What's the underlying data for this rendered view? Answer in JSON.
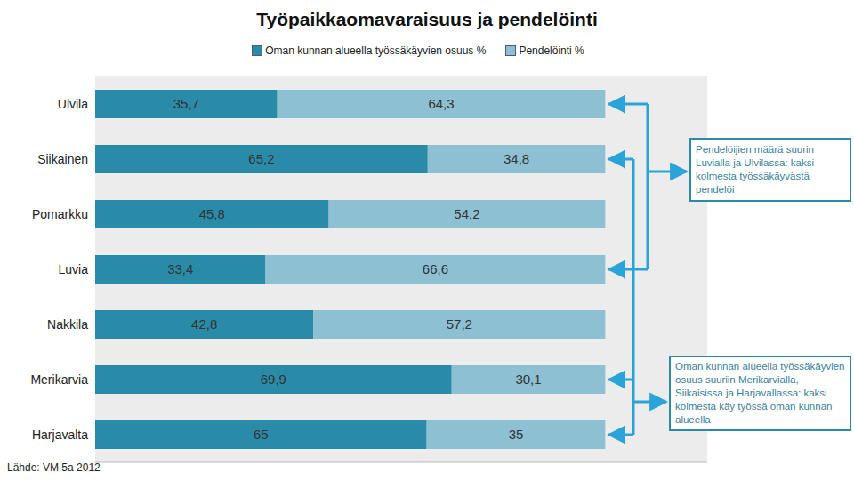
{
  "chart_data": {
    "type": "bar",
    "title": "Työpaikkaomavaraisuus ja pendelöinti",
    "orientation": "horizontal",
    "stacked": true,
    "data_labels": true,
    "legend": "top",
    "tick_labels": "y",
    "categories": [
      "Ulvila",
      "Siikainen",
      "Pomarkku",
      "Luvia",
      "Nakkila",
      "Merikarvia",
      "Harjavalta"
    ],
    "series": [
      {
        "name": "Oman kunnan alueella työssäkäyvien osuus %",
        "color": "#2a8ba8",
        "values": [
          35.7,
          65.2,
          45.8,
          33.4,
          42.8,
          69.9,
          65
        ],
        "value_labels": [
          "35,7",
          "65,2",
          "45,8",
          "33,4",
          "42,8",
          "69,9",
          "65"
        ]
      },
      {
        "name": "Pendelöinti %",
        "color": "#8cc0d2",
        "values": [
          64.3,
          34.8,
          54.2,
          66.6,
          57.2,
          30.1,
          35
        ],
        "value_labels": [
          "64,3",
          "34,8",
          "54,2",
          "66,6",
          "57,2",
          "30,1",
          "35"
        ]
      }
    ],
    "xlim": [
      0,
      120
    ],
    "annotations": [
      "Pendelöijien määrä suurin Luvialla ja Ulvilassa: kaksi kolmesta työssäkäyvästä pendelöi",
      "Oman kunnan alueella työssäkäyvien osuus suuriin Merikarvialla, Siikaisissa ja Harjavallassa: kaksi kolmesta käy työssä oman kunnan alueella",
      "Lähde: VM 5a 2012"
    ]
  }
}
